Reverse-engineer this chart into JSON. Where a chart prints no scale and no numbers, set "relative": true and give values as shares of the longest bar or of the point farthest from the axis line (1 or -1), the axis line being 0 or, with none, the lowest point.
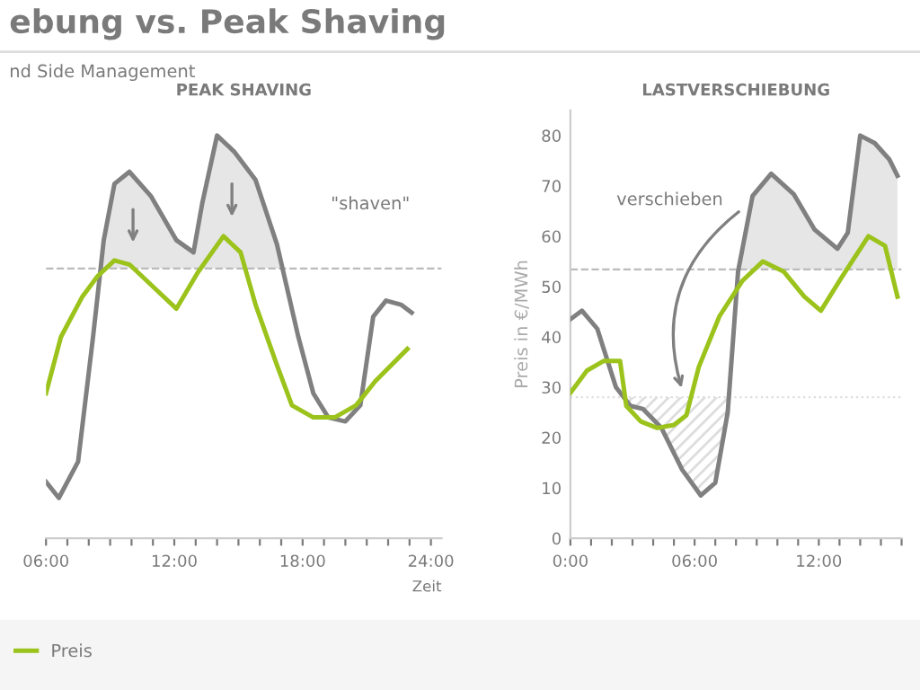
{
  "chart_data": [
    {
      "type": "line",
      "title": "PEAK SHAVING",
      "xlabel": "Zeit",
      "xlim": [
        6,
        24.5
      ],
      "relative": true,
      "xticks": [
        {
          "value": 6,
          "label": "06:00"
        },
        {
          "value": 7,
          "label": null
        },
        {
          "value": 8,
          "label": null
        },
        {
          "value": 9,
          "label": null
        },
        {
          "value": 10,
          "label": null
        },
        {
          "value": 11,
          "label": null
        },
        {
          "value": 12,
          "label": "12:00"
        },
        {
          "value": 13,
          "label": null
        },
        {
          "value": 14,
          "label": null
        },
        {
          "value": 15,
          "label": null
        },
        {
          "value": 16,
          "label": null
        },
        {
          "value": 17,
          "label": null
        },
        {
          "value": 18,
          "label": "18:00"
        },
        {
          "value": 19,
          "label": null
        },
        {
          "value": 20,
          "label": null
        },
        {
          "value": 21,
          "label": null
        },
        {
          "value": 22,
          "label": null
        },
        {
          "value": 23,
          "label": null
        },
        {
          "value": 24,
          "label": "24:00"
        }
      ],
      "grid": false,
      "legend": "bottom",
      "ref_lines": [
        {
          "axis": "y",
          "value": 0.67,
          "color": "#bbbbbb",
          "line_style": "dashed"
        }
      ],
      "annotations": [
        "ebung vs. Peak Shaving",
        "nd Side Management",
        "\"shaven\""
      ],
      "series": [
        {
          "color": "#808080",
          "x": [
            6,
            6.6,
            7.5,
            8.2,
            8.7,
            9.2,
            9.9,
            10.9,
            12.1,
            12.9,
            13.3,
            14,
            14.8,
            15.8,
            16.8,
            17.8,
            18.5,
            19.2,
            20,
            20.7,
            21.3,
            21.9,
            22.6,
            23.1
          ],
          "values": [
            0.14,
            0.1,
            0.19,
            0.5,
            0.74,
            0.88,
            0.91,
            0.85,
            0.74,
            0.71,
            0.83,
            1,
            0.96,
            0.89,
            0.73,
            0.5,
            0.36,
            0.3,
            0.29,
            0.33,
            0.55,
            0.59,
            0.58,
            0.56
          ]
        },
        {
          "name": "Preis",
          "color": "#9bc31c",
          "x": [
            6,
            6.7,
            7.7,
            8.4,
            9.2,
            9.9,
            10.9,
            12.1,
            13.1,
            14.3,
            15.1,
            15.8,
            16.8,
            17.5,
            18.5,
            19.5,
            20.5,
            21.4,
            22.9
          ],
          "values": [
            0.36,
            0.5,
            0.6,
            0.65,
            0.69,
            0.68,
            0.63,
            0.57,
            0.66,
            0.75,
            0.71,
            0.58,
            0.43,
            0.33,
            0.3,
            0.3,
            0.33,
            0.39,
            0.47
          ]
        }
      ]
    },
    {
      "type": "line",
      "title": "LASTVERSCHIEBUNG",
      "ylabel": "Preis in €/MWh",
      "xlim": [
        0,
        16
      ],
      "ylim": [
        0,
        85
      ],
      "xticks": [
        {
          "value": 0,
          "label": "0:00"
        },
        {
          "value": 1,
          "label": null
        },
        {
          "value": 2,
          "label": null
        },
        {
          "value": 3,
          "label": null
        },
        {
          "value": 4,
          "label": null
        },
        {
          "value": 5,
          "label": null
        },
        {
          "value": 6,
          "label": "06:00"
        },
        {
          "value": 7,
          "label": null
        },
        {
          "value": 8,
          "label": null
        },
        {
          "value": 9,
          "label": null
        },
        {
          "value": 10,
          "label": null
        },
        {
          "value": 11,
          "label": null
        },
        {
          "value": 12,
          "label": "12:00"
        },
        {
          "value": 13,
          "label": null
        },
        {
          "value": 14,
          "label": null
        },
        {
          "value": 15,
          "label": null
        },
        {
          "value": 16,
          "label": null
        }
      ],
      "yticks": [
        0,
        10,
        20,
        30,
        40,
        50,
        60,
        70,
        80
      ],
      "grid": false,
      "ref_lines": [
        {
          "axis": "y",
          "value": 53.4,
          "color": "#bbbbbb",
          "line_style": "dashed"
        },
        {
          "axis": "y",
          "value": 28,
          "color": "#dddddd",
          "line_style": "dotted"
        }
      ],
      "annotations": [
        "verschieben"
      ],
      "series": [
        {
          "color": "#808080",
          "x": [
            0,
            0.56,
            1.3,
            2.2,
            2.9,
            3.5,
            4.4,
            5.4,
            6.3,
            7,
            7.6,
            8.1,
            8.8,
            9.7,
            10.8,
            11.8,
            12.9,
            13.4,
            14,
            14.7,
            15.4,
            15.8
          ],
          "values": [
            43.5,
            45.2,
            41.6,
            30,
            26.3,
            25.7,
            21.9,
            13.6,
            8.5,
            11,
            25,
            53,
            68,
            72.4,
            68.3,
            61.3,
            57.5,
            60.7,
            80,
            78.5,
            75.3,
            72
          ]
        },
        {
          "color": "#9bc31c",
          "x": [
            0,
            0.8,
            1.6,
            2.4,
            2.7,
            3.4,
            4.2,
            5,
            5.6,
            6.2,
            7.2,
            8.3,
            9.3,
            10.3,
            11.3,
            12.1,
            13.1,
            14.4,
            15.2,
            15.8
          ],
          "values": [
            28.9,
            33.3,
            35.2,
            35.2,
            26.3,
            23.2,
            21.9,
            22.5,
            24.4,
            34,
            44.1,
            51.1,
            55,
            53,
            48,
            45.2,
            51.8,
            60,
            58.1,
            48
          ]
        }
      ]
    }
  ]
}
